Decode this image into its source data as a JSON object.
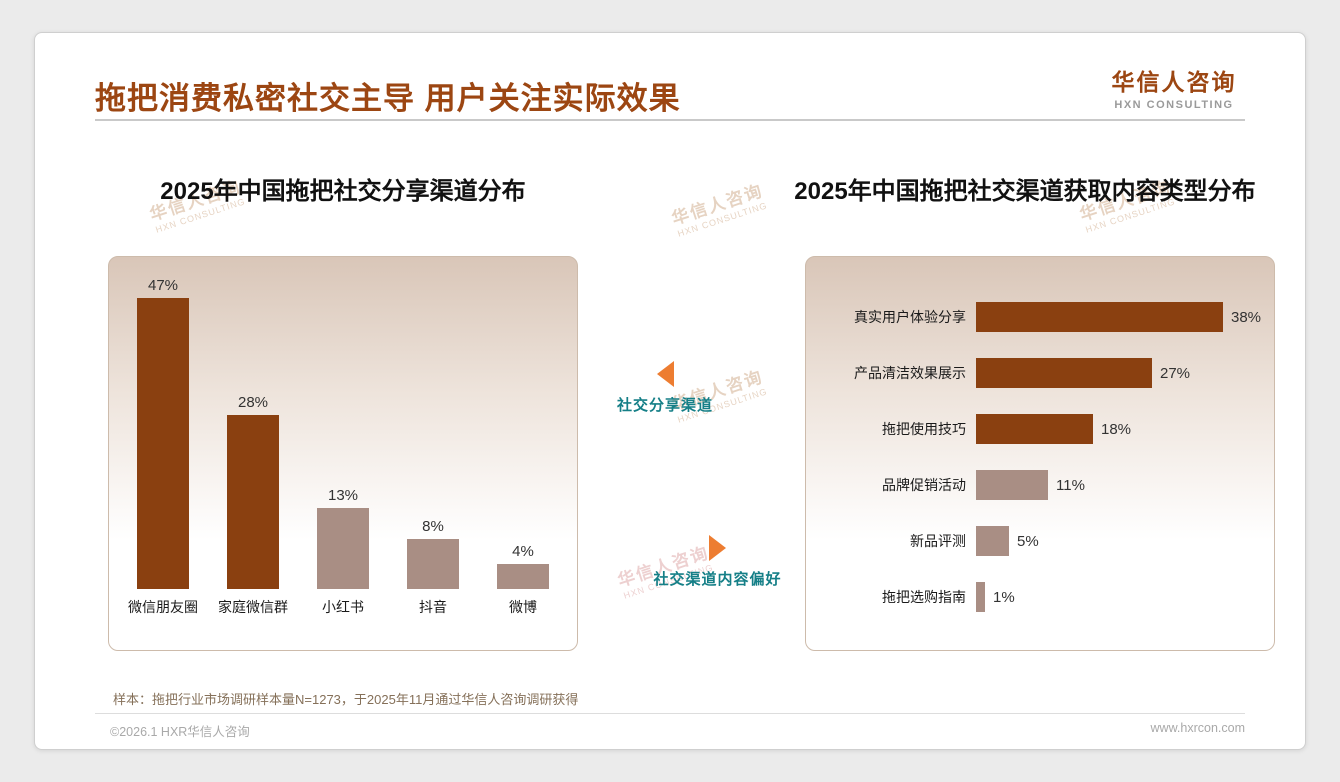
{
  "page": {
    "title": "拖把消费私密社交主导 用户关注实际效果",
    "logo": {
      "name": "华信人咨询",
      "sub": "HXN CONSULTING"
    },
    "watermark": {
      "name": "华信人咨询",
      "sub": "HXN CONSULTING"
    },
    "footnote": "样本：拖把行业市场调研样本量N=1273，于2025年11月通过华信人咨询调研获得",
    "footer_left": "©2026.1 HXR华信人咨询",
    "footer_right": "www.hxrcon.com"
  },
  "annotations": {
    "share_channel": "社交分享渠道",
    "content_preference": "社交渠道内容偏好"
  },
  "colors": {
    "bar_dark": "#8a4010",
    "bar_light": "#a98e84",
    "accent_brown": "#9c4612",
    "teal": "#157f87",
    "orange": "#ed7d31"
  },
  "chart_data": [
    {
      "type": "bar",
      "title": "2025年中国拖把社交分享渠道分布",
      "categories": [
        "微信朋友圈",
        "家庭微信群",
        "小红书",
        "抖音",
        "微博"
      ],
      "values": [
        47,
        28,
        13,
        8,
        4
      ],
      "unit": "%",
      "ylim": [
        0,
        50
      ],
      "grid": false,
      "legend": false,
      "bar_colors": [
        "dark",
        "dark",
        "light",
        "light",
        "light"
      ]
    },
    {
      "type": "bar-horizontal",
      "title": "2025年中国拖把社交渠道获取内容类型分布",
      "categories": [
        "真实用户体验分享",
        "产品清洁效果展示",
        "拖把使用技巧",
        "品牌促销活动",
        "新品评测",
        "拖把选购指南"
      ],
      "values": [
        38,
        27,
        18,
        11,
        5,
        1
      ],
      "unit": "%",
      "xlim": [
        0,
        42
      ],
      "grid": false,
      "legend": false,
      "bar_colors": [
        "dark",
        "dark",
        "dark",
        "light",
        "light",
        "light"
      ]
    }
  ]
}
